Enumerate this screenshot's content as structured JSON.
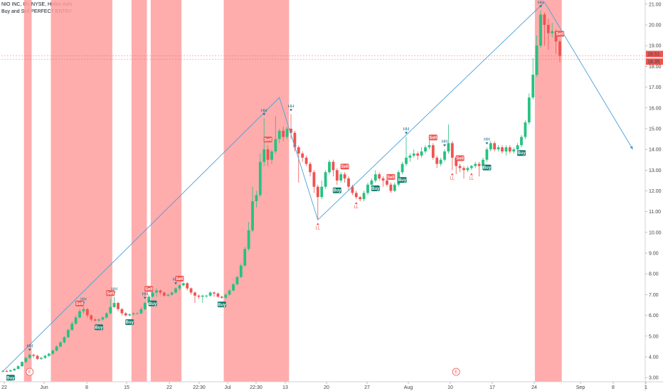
{
  "header": {
    "symbol_line": "NIO INC, 6h, NYSE, Heikin Ashi",
    "indicator_line": "Buy and Sell PERFECT ENTRY"
  },
  "colors": {
    "up": "#26c281",
    "down": "#ef5350",
    "band": "#ff9e9e",
    "trend": "#4a9fd8",
    "buy": "#0f7a6b",
    "sell": "#ef5350",
    "axis_text": "#444444"
  },
  "chart_data": {
    "type": "candlestick",
    "title": "NIO INC, 6h, NYSE, Heikin Ashi",
    "ylim": [
      2.8,
      21.2
    ],
    "y_ticks": [
      3,
      4,
      5,
      6,
      7,
      8,
      9,
      10,
      11,
      12,
      13,
      14,
      15,
      16,
      17,
      18,
      19,
      20,
      21
    ],
    "y_tick_labels": [
      "3.00",
      "4.00",
      "5.00",
      "6.00",
      "7.00",
      "8.00",
      "9.00",
      "10.00",
      "11.00",
      "12.00",
      "13.00",
      "14.00",
      "15.00",
      "16.00",
      "17.00",
      "18.00",
      "19.00",
      "20.00",
      "21.00"
    ],
    "x_ticks": [
      "22",
      "Jun",
      "8",
      "15",
      "22",
      "22:30",
      "Jul",
      "22:30",
      "13",
      "20",
      "27",
      "Aug",
      "10",
      "17",
      "24",
      "Sep",
      "8",
      "1"
    ],
    "price_labels": [
      {
        "text": "18.51",
        "value": 18.51
      },
      {
        "text": "18.35",
        "value": 18.35
      }
    ],
    "candles": [
      [
        3.3,
        3.32,
        3.37,
        3.25
      ],
      [
        3.32,
        3.3,
        3.38,
        3.26
      ],
      [
        3.3,
        3.35,
        3.4,
        3.27
      ],
      [
        3.35,
        3.42,
        3.48,
        3.32
      ],
      [
        3.42,
        3.55,
        3.6,
        3.4
      ],
      [
        3.55,
        3.75,
        3.8,
        3.52
      ],
      [
        3.75,
        3.95,
        4.0,
        3.7
      ],
      [
        3.95,
        4.1,
        4.15,
        3.9
      ],
      [
        4.1,
        4.05,
        4.15,
        3.95
      ],
      [
        4.05,
        3.9,
        4.1,
        3.85
      ],
      [
        3.9,
        3.95,
        4.0,
        3.85
      ],
      [
        3.95,
        4.05,
        4.1,
        3.9
      ],
      [
        4.05,
        4.15,
        4.2,
        4.0
      ],
      [
        4.15,
        4.3,
        4.35,
        4.1
      ],
      [
        4.3,
        4.5,
        4.55,
        4.25
      ],
      [
        4.5,
        4.7,
        4.75,
        4.45
      ],
      [
        4.7,
        4.95,
        5.0,
        4.65
      ],
      [
        4.95,
        5.3,
        5.35,
        4.9
      ],
      [
        5.3,
        5.6,
        5.7,
        5.25
      ],
      [
        5.6,
        5.9,
        6.0,
        5.55
      ],
      [
        5.9,
        6.2,
        6.3,
        5.85
      ],
      [
        6.2,
        6.3,
        6.4,
        6.1
      ],
      [
        6.3,
        6.0,
        6.35,
        5.9
      ],
      [
        6.0,
        5.8,
        6.05,
        5.7
      ],
      [
        5.8,
        5.75,
        5.85,
        5.7
      ],
      [
        5.75,
        5.8,
        5.85,
        5.7
      ],
      [
        5.8,
        5.9,
        5.95,
        5.75
      ],
      [
        5.9,
        6.1,
        6.15,
        5.85
      ],
      [
        6.1,
        6.4,
        6.8,
        6.05
      ],
      [
        6.4,
        6.6,
        6.9,
        6.35
      ],
      [
        6.6,
        6.3,
        6.65,
        6.2
      ],
      [
        6.3,
        6.1,
        6.35,
        6.0
      ],
      [
        6.1,
        6.0,
        6.15,
        5.95
      ],
      [
        6.0,
        6.05,
        6.1,
        5.95
      ],
      [
        6.05,
        6.1,
        6.15,
        6.0
      ],
      [
        6.1,
        6.1,
        6.15,
        6.05
      ],
      [
        6.1,
        6.3,
        6.4,
        6.05
      ],
      [
        6.3,
        6.6,
        6.65,
        6.25
      ],
      [
        6.6,
        6.9,
        7.0,
        6.55
      ],
      [
        6.9,
        7.1,
        7.2,
        6.85
      ],
      [
        7.1,
        7.2,
        7.3,
        6.9
      ],
      [
        7.2,
        7.1,
        7.25,
        7.0
      ],
      [
        7.1,
        6.95,
        7.15,
        6.9
      ],
      [
        6.95,
        7.0,
        7.05,
        6.9
      ],
      [
        7.0,
        7.1,
        7.15,
        6.95
      ],
      [
        7.1,
        7.3,
        7.35,
        7.05
      ],
      [
        7.3,
        7.45,
        7.5,
        7.2
      ],
      [
        7.45,
        7.55,
        7.6,
        7.4
      ],
      [
        7.55,
        7.3,
        7.6,
        7.2
      ],
      [
        7.3,
        7.1,
        7.35,
        7.0
      ],
      [
        7.1,
        6.95,
        7.15,
        6.6
      ],
      [
        6.95,
        6.9,
        7.0,
        6.8
      ],
      [
        6.9,
        6.95,
        7.0,
        6.6
      ],
      [
        6.95,
        6.95,
        7.0,
        6.85
      ],
      [
        6.95,
        7.1,
        7.15,
        6.9
      ],
      [
        7.1,
        7.05,
        7.15,
        6.9
      ],
      [
        7.05,
        6.9,
        7.1,
        6.85
      ],
      [
        6.9,
        6.85,
        6.95,
        6.8
      ],
      [
        6.85,
        7.0,
        7.05,
        6.8
      ],
      [
        7.0,
        7.2,
        7.25,
        6.95
      ],
      [
        7.2,
        7.5,
        7.55,
        7.15
      ],
      [
        7.5,
        7.85,
        7.9,
        7.45
      ],
      [
        7.85,
        8.4,
        8.5,
        7.8
      ],
      [
        8.4,
        9.2,
        9.3,
        8.35
      ],
      [
        9.2,
        10.1,
        10.5,
        9.1
      ],
      [
        10.1,
        11.5,
        12.2,
        10.0
      ],
      [
        11.5,
        11.8,
        12.0,
        11.2
      ],
      [
        11.8,
        13.4,
        13.8,
        11.7
      ],
      [
        13.4,
        14.0,
        15.5,
        13.2
      ],
      [
        14.0,
        13.5,
        14.2,
        13.2
      ],
      [
        13.5,
        13.9,
        14.0,
        13.3
      ],
      [
        13.9,
        14.5,
        15.6,
        13.8
      ],
      [
        14.5,
        14.9,
        15.0,
        14.3
      ],
      [
        14.9,
        14.6,
        15.1,
        14.4
      ],
      [
        14.6,
        15.0,
        15.1,
        14.5
      ],
      [
        15.0,
        14.8,
        15.7,
        14.5
      ],
      [
        14.8,
        14.1,
        14.9,
        13.9
      ],
      [
        14.1,
        13.8,
        14.2,
        12.4
      ],
      [
        13.8,
        13.6,
        13.9,
        13.4
      ],
      [
        13.6,
        13.3,
        13.7,
        13.2
      ],
      [
        13.3,
        12.9,
        13.4,
        12.7
      ],
      [
        12.9,
        12.2,
        13.0,
        11.9
      ],
      [
        12.2,
        11.7,
        12.3,
        10.6
      ],
      [
        11.7,
        12.2,
        12.5,
        11.6
      ],
      [
        12.2,
        12.9,
        13.0,
        12.1
      ],
      [
        12.9,
        13.4,
        13.5,
        12.8
      ],
      [
        13.4,
        13.0,
        13.5,
        12.7
      ],
      [
        13.0,
        12.5,
        13.1,
        12.3
      ],
      [
        12.5,
        12.8,
        12.9,
        12.4
      ],
      [
        12.8,
        12.6,
        12.9,
        12.4
      ],
      [
        12.6,
        12.2,
        12.7,
        12.0
      ],
      [
        12.2,
        11.9,
        12.3,
        11.8
      ],
      [
        11.9,
        11.7,
        12.0,
        11.6
      ],
      [
        11.7,
        11.6,
        11.75,
        11.5
      ],
      [
        11.6,
        11.9,
        12.0,
        11.5
      ],
      [
        11.9,
        12.3,
        12.4,
        11.8
      ],
      [
        12.3,
        12.5,
        12.6,
        12.2
      ],
      [
        12.5,
        12.8,
        13.0,
        12.4
      ],
      [
        12.8,
        12.6,
        12.9,
        12.5
      ],
      [
        12.6,
        12.5,
        12.7,
        12.2
      ],
      [
        12.5,
        12.3,
        12.6,
        12.2
      ],
      [
        12.3,
        12.0,
        12.4,
        11.9
      ],
      [
        12.0,
        12.3,
        12.4,
        11.95
      ],
      [
        12.3,
        12.9,
        13.0,
        12.2
      ],
      [
        12.9,
        13.3,
        13.4,
        12.8
      ],
      [
        13.3,
        13.6,
        14.6,
        13.2
      ],
      [
        13.6,
        13.7,
        13.8,
        13.4
      ],
      [
        13.7,
        13.8,
        14.0,
        13.6
      ],
      [
        13.8,
        13.7,
        13.9,
        13.5
      ],
      [
        13.7,
        13.9,
        14.1,
        13.6
      ],
      [
        13.9,
        14.1,
        14.2,
        13.8
      ],
      [
        14.1,
        14.2,
        14.5,
        14.0
      ],
      [
        14.2,
        13.6,
        14.3,
        13.5
      ],
      [
        13.6,
        13.3,
        13.7,
        13.1
      ],
      [
        13.3,
        13.5,
        13.6,
        13.2
      ],
      [
        13.5,
        13.9,
        14.0,
        13.4
      ],
      [
        13.9,
        14.3,
        15.2,
        13.8
      ],
      [
        14.3,
        13.6,
        14.4,
        13.0
      ],
      [
        13.6,
        13.2,
        13.7,
        12.8
      ],
      [
        13.2,
        13.1,
        13.3,
        12.9
      ],
      [
        13.1,
        13.0,
        13.2,
        12.6
      ],
      [
        13.0,
        13.1,
        13.2,
        12.9
      ],
      [
        13.1,
        13.2,
        13.25,
        13.0
      ],
      [
        13.2,
        13.3,
        13.4,
        13.1
      ],
      [
        13.3,
        13.2,
        13.4,
        12.7
      ],
      [
        13.2,
        13.5,
        13.6,
        13.1
      ],
      [
        13.5,
        14.0,
        14.1,
        13.4
      ],
      [
        14.0,
        14.3,
        14.4,
        13.9
      ],
      [
        14.3,
        14.0,
        14.4,
        13.9
      ],
      [
        14.0,
        14.1,
        14.2,
        13.9
      ],
      [
        14.1,
        13.9,
        14.2,
        13.8
      ],
      [
        13.9,
        14.1,
        14.2,
        13.7
      ],
      [
        14.1,
        13.9,
        14.2,
        13.8
      ],
      [
        13.9,
        14.0,
        14.1,
        13.8
      ],
      [
        14.0,
        14.2,
        14.3,
        13.8
      ],
      [
        14.2,
        14.6,
        14.7,
        14.1
      ],
      [
        14.6,
        15.3,
        15.4,
        14.5
      ],
      [
        15.3,
        16.5,
        16.7,
        15.2
      ],
      [
        16.5,
        17.6,
        18.4,
        16.4
      ],
      [
        17.6,
        19.0,
        19.5,
        17.5
      ],
      [
        19.0,
        20.5,
        20.7,
        18.9
      ],
      [
        20.5,
        20.0,
        20.6,
        19.0
      ],
      [
        20.0,
        19.6,
        20.3,
        18.8
      ],
      [
        19.6,
        19.7,
        20.1,
        19.4
      ],
      [
        19.7,
        19.2,
        19.8,
        18.6
      ],
      [
        19.2,
        18.51,
        19.3,
        18.2
      ]
    ],
    "signals": [
      {
        "text": "HH",
        "kind": "hh",
        "index": 7
      },
      {
        "text": "HH",
        "kind": "hh",
        "index": 21
      },
      {
        "text": "HH",
        "kind": "hh",
        "index": 29
      },
      {
        "text": "HH",
        "kind": "hh",
        "index": 37
      },
      {
        "text": "HH",
        "kind": "hh",
        "index": 45
      },
      {
        "text": "HH",
        "kind": "hh",
        "index": 68
      },
      {
        "text": "HH",
        "kind": "hh",
        "index": 75
      },
      {
        "text": "HH",
        "kind": "hh",
        "index": 105
      },
      {
        "text": "HH",
        "kind": "hh",
        "index": 115
      },
      {
        "text": "HH",
        "kind": "hh",
        "index": 126
      },
      {
        "text": "HH",
        "kind": "hh",
        "index": 140
      },
      {
        "text": "LL",
        "kind": "ll",
        "index": 82
      },
      {
        "text": "LL",
        "kind": "ll",
        "index": 92
      },
      {
        "text": "LL",
        "kind": "ll",
        "index": 117
      },
      {
        "text": "LL",
        "kind": "ll",
        "index": 122
      },
      {
        "text": "Buy",
        "kind": "buy",
        "index": 2
      },
      {
        "text": "Buy",
        "kind": "buy",
        "index": 25
      },
      {
        "text": "Buy",
        "kind": "buy",
        "index": 33
      },
      {
        "text": "Buy",
        "kind": "buy",
        "index": 39
      },
      {
        "text": "Buy",
        "kind": "buy",
        "index": 57
      },
      {
        "text": "Buy",
        "kind": "buy",
        "index": 87
      },
      {
        "text": "Buy",
        "kind": "buy",
        "index": 97
      },
      {
        "text": "Buy",
        "kind": "buy",
        "index": 104
      },
      {
        "text": "Buy",
        "kind": "buy",
        "index": 126
      },
      {
        "text": "Buy",
        "kind": "buy",
        "index": 135
      },
      {
        "text": "Sell",
        "kind": "sell",
        "index": 20
      },
      {
        "text": "Sell",
        "kind": "sell",
        "index": 28
      },
      {
        "text": "Sell",
        "kind": "sell",
        "index": 38
      },
      {
        "text": "Sell",
        "kind": "sell",
        "index": 46
      },
      {
        "text": "Sell",
        "kind": "sell",
        "index": 69
      },
      {
        "text": "Sell",
        "kind": "sell",
        "index": 89
      },
      {
        "text": "Sell",
        "kind": "sell",
        "index": 101
      },
      {
        "text": "Sell",
        "kind": "sell",
        "index": 112
      },
      {
        "text": "Sell",
        "kind": "sell",
        "index": 119
      },
      {
        "text": "Sell",
        "kind": "sell",
        "index": 145
      }
    ],
    "earnings": [
      {
        "text": "E",
        "index": 7
      },
      {
        "text": "E",
        "index": 118
      }
    ],
    "zigzag": [
      {
        "index": 0,
        "value": 3.3
      },
      {
        "index": 72,
        "value": 16.5
      },
      {
        "index": 82,
        "value": 10.6
      },
      {
        "index": 141,
        "value": 21.1
      },
      {
        "index": 164,
        "value": 14.0
      }
    ],
    "bands": [
      [
        6,
        7
      ],
      [
        13,
        28
      ],
      [
        34,
        37
      ],
      [
        39,
        46
      ],
      [
        58,
        74
      ],
      [
        139,
        145
      ]
    ]
  }
}
